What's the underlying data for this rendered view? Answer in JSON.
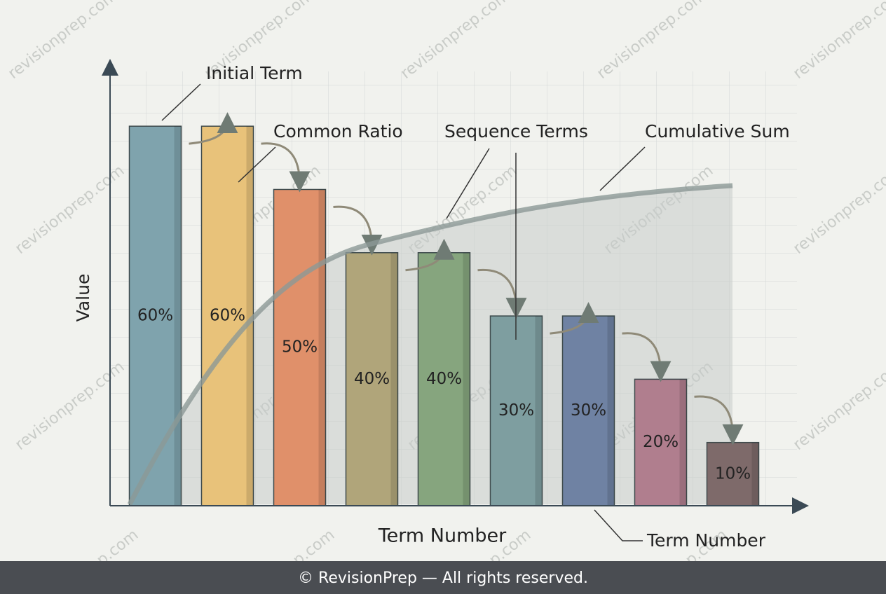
{
  "chart_data": {
    "type": "bar",
    "y_label": "Value",
    "x_label": "Term Number",
    "values": [
      60,
      60,
      50,
      40,
      40,
      30,
      30,
      20,
      10
    ],
    "value_labels": [
      "60%",
      "60%",
      "50%",
      "40%",
      "40%",
      "30%",
      "30%",
      "20%",
      "10%"
    ],
    "colors": [
      "#7fa3ad",
      "#e8c27a",
      "#e0906a",
      "#b0a57a",
      "#86a57e",
      "#7e9ea0",
      "#6f82a3",
      "#b07e8e",
      "#7e6a6a"
    ],
    "ylim": [
      0,
      65
    ],
    "annotations": [
      "Initial Term",
      "Common Ratio",
      "Sequence Terms",
      "Cumulative Sum",
      "Term Number"
    ]
  },
  "watermark": "revisionprep.com",
  "footer": "© RevisionPrep — All rights reserved."
}
